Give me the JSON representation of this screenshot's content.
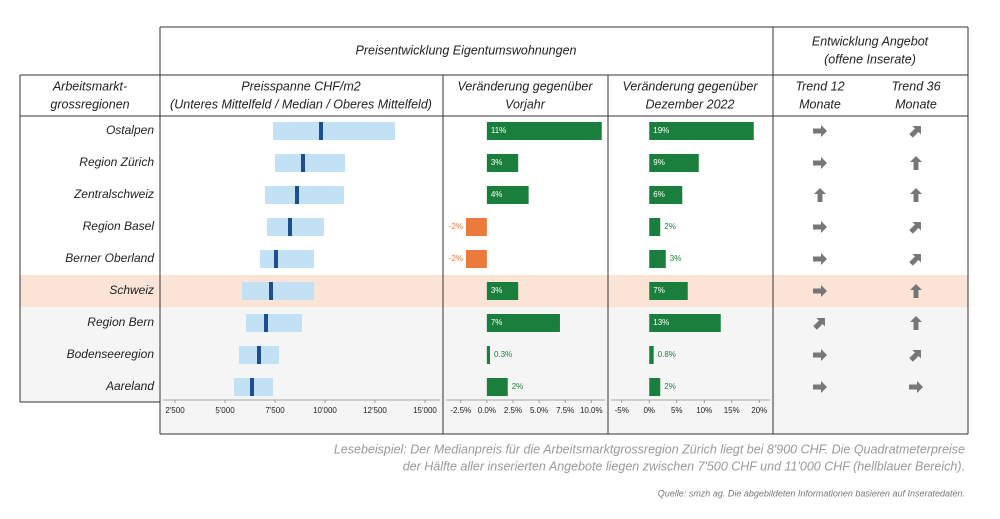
{
  "header": {
    "group_title": "Preisentwicklung Eigentumswohnungen",
    "supply_title": [
      "Entwicklung Angebot",
      "(offene Inserate)"
    ]
  },
  "columns": {
    "region": [
      "Arbeitsmarkt-",
      "grossregionen"
    ],
    "range": [
      "Preisspanne CHF/m2",
      "(Unteres Mittelfeld / Median / Oberes Mittelfeld)"
    ],
    "yoy": [
      "Veränderung gegenüber",
      "Vorjahr"
    ],
    "dec": [
      "Veränderung gegenüber",
      "Dezember 2022"
    ],
    "trend12": [
      "Trend 12",
      "Monate"
    ],
    "trend36": [
      "Trend 36",
      "Monate"
    ]
  },
  "chart_data": [
    {
      "type": "range",
      "categories": [
        "Ostalpen",
        "Region Zürich",
        "Zentralschweiz",
        "Region Basel",
        "Berner Oberland",
        "Schweiz",
        "Region Bern",
        "Bodenseeregion",
        "Aareland"
      ],
      "low": [
        7400,
        7500,
        7000,
        7100,
        6750,
        5850,
        6050,
        5700,
        5450
      ],
      "median": [
        9800,
        8900,
        8600,
        8250,
        7550,
        7300,
        7050,
        6700,
        6350
      ],
      "high": [
        13500,
        11000,
        10950,
        9950,
        9450,
        9450,
        8850,
        7700,
        7400
      ],
      "range_color": "#c2e1f5",
      "median_color": "#1f4e8c",
      "xlim": [
        1750,
        15900
      ],
      "xticks": [
        {
          "value": 2500,
          "label": "2'500"
        },
        {
          "value": 5000,
          "label": "5'000"
        },
        {
          "value": 7500,
          "label": "7'500"
        },
        {
          "value": 10000,
          "label": "10'000"
        },
        {
          "value": 12500,
          "label": "12'500"
        },
        {
          "value": 15000,
          "label": "15'000"
        }
      ]
    },
    {
      "type": "bar",
      "values": [
        11,
        3,
        4,
        -2,
        -2,
        3,
        7,
        0.3,
        2
      ],
      "value_labels": [
        "11%",
        "3%",
        "4%",
        "-2%",
        "-2%",
        "3%",
        "7%",
        "0.3%",
        "2%"
      ],
      "color": "#1a7f3c",
      "negative_color": "#ec7a3a",
      "xlim": [
        -4.2,
        11.6
      ],
      "xticks": [
        {
          "value": -2.5,
          "label": "-2.5%"
        },
        {
          "value": 0,
          "label": "0.0%"
        },
        {
          "value": 2.5,
          "label": "2.5%"
        },
        {
          "value": 5,
          "label": "5.0%"
        },
        {
          "value": 7.5,
          "label": "7.5%"
        },
        {
          "value": 10,
          "label": "10.0%"
        }
      ]
    },
    {
      "type": "bar",
      "values": [
        19,
        9,
        6,
        2,
        3,
        7,
        13,
        0.8,
        2
      ],
      "value_labels": [
        "19%",
        "9%",
        "6%",
        "2%",
        "3%",
        "7%",
        "13%",
        "0.8%",
        "2%"
      ],
      "color": "#1a7f3c",
      "negative_color": "#ec7a3a",
      "xlim": [
        -7.5,
        22.5
      ],
      "xticks": [
        {
          "value": -5,
          "label": "-5%"
        },
        {
          "value": 0,
          "label": "0%"
        },
        {
          "value": 5,
          "label": "5%"
        },
        {
          "value": 10,
          "label": "10%"
        },
        {
          "value": 15,
          "label": "15%"
        },
        {
          "value": 20,
          "label": "20%"
        }
      ]
    }
  ],
  "notes": [
    "Lesebeispiel: Der Medianpreis für die Arbeitsmarktgrossregion Zürich liegt bei 8'900 CHF. Die Quadratmeterpreise",
    "der Hälfte aller inserierten Angebote liegen zwischen 7'500 CHF und 11'000 CHF (hellblauer Bereich)."
  ],
  "source": "Quelle: smzh ag. Die abgebildeten Informationen basieren auf Inseratedaten."
}
